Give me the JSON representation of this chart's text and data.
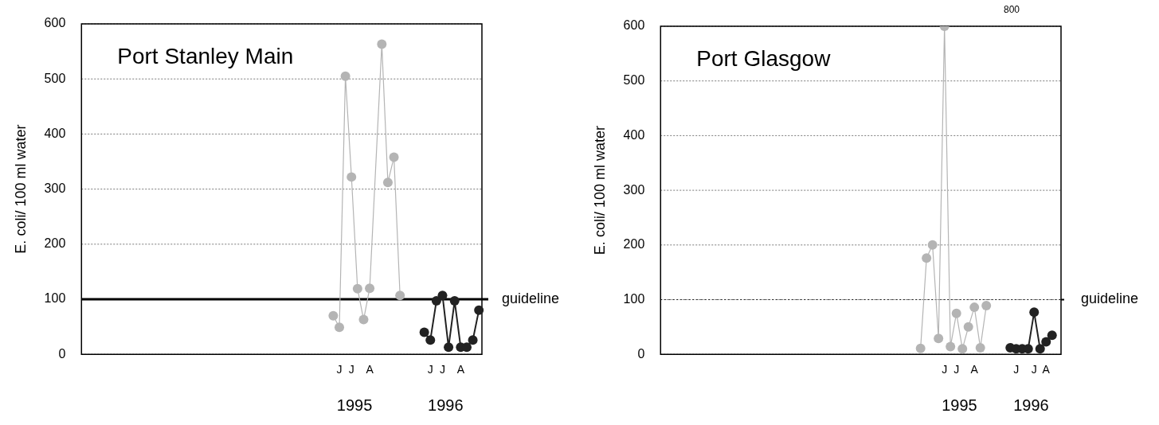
{
  "chart_data": [
    {
      "type": "line",
      "title": "Port Stanley Main",
      "ylabel": "E. coli/ 100 ml water",
      "categories": [
        null,
        null,
        null,
        null,
        null,
        null,
        null,
        null,
        null,
        null,
        null,
        null,
        null,
        null,
        null,
        null,
        null,
        null,
        null,
        null,
        null,
        null,
        null,
        null,
        null,
        null,
        null,
        null,
        null,
        null,
        null,
        null,
        null,
        null,
        null,
        null,
        null,
        null,
        null,
        null,
        null,
        null,
        "J",
        null,
        "J",
        null,
        null,
        "A",
        null,
        null,
        null,
        null,
        null,
        null,
        null,
        null,
        null,
        "J",
        null,
        "J",
        null,
        null,
        "A",
        null,
        null,
        null
      ],
      "series": [
        {
          "color": "#b4b4b4",
          "values": [
            null,
            null,
            null,
            null,
            null,
            null,
            null,
            null,
            null,
            null,
            null,
            null,
            null,
            null,
            null,
            null,
            null,
            null,
            null,
            null,
            null,
            null,
            null,
            null,
            null,
            null,
            null,
            null,
            null,
            null,
            null,
            null,
            null,
            null,
            null,
            null,
            null,
            null,
            null,
            null,
            null,
            70,
            49,
            505,
            322,
            119,
            63,
            120,
            null,
            563,
            312,
            358,
            107,
            null,
            null,
            null,
            null,
            null,
            null,
            null,
            null,
            null,
            null,
            null,
            null,
            null
          ]
        },
        {
          "color": "#222222",
          "values": [
            null,
            null,
            null,
            null,
            null,
            null,
            null,
            null,
            null,
            null,
            null,
            null,
            null,
            null,
            null,
            null,
            null,
            null,
            null,
            null,
            null,
            null,
            null,
            null,
            null,
            null,
            null,
            null,
            null,
            null,
            null,
            null,
            null,
            null,
            null,
            null,
            null,
            null,
            null,
            null,
            null,
            null,
            null,
            null,
            null,
            null,
            null,
            null,
            null,
            null,
            null,
            null,
            null,
            null,
            null,
            null,
            40,
            26,
            97,
            107,
            13,
            97,
            13,
            13,
            26,
            80
          ]
        }
      ],
      "ylim": [
        0,
        600
      ],
      "yticks": [
        0,
        100,
        200,
        300,
        400,
        500,
        600
      ],
      "grid": "y",
      "legend": false,
      "marker": "circle",
      "line_style": "solid",
      "ref_lines": [
        {
          "axis": "y",
          "value": 100,
          "label": "guideline",
          "color": "#000000",
          "line_style": "solid"
        }
      ],
      "annotations": [
        "1995",
        "1996"
      ]
    },
    {
      "type": "line",
      "title": "Port Glasgow",
      "ylabel": "E. coli/ 100 ml water",
      "categories": [
        null,
        null,
        null,
        null,
        null,
        null,
        null,
        null,
        null,
        null,
        null,
        null,
        null,
        null,
        null,
        null,
        null,
        null,
        null,
        null,
        null,
        null,
        null,
        null,
        null,
        null,
        null,
        null,
        null,
        null,
        null,
        null,
        null,
        null,
        null,
        null,
        null,
        null,
        null,
        null,
        null,
        null,
        null,
        null,
        null,
        null,
        null,
        "J",
        null,
        "J",
        null,
        null,
        "A",
        null,
        null,
        null,
        null,
        null,
        null,
        "J",
        null,
        null,
        "J",
        null,
        "A",
        null,
        null
      ],
      "series": [
        {
          "color": "#b4b4b4",
          "values": [
            null,
            null,
            null,
            null,
            null,
            null,
            null,
            null,
            null,
            null,
            null,
            null,
            null,
            null,
            null,
            null,
            null,
            null,
            null,
            null,
            null,
            null,
            null,
            null,
            null,
            null,
            null,
            null,
            null,
            null,
            null,
            null,
            null,
            null,
            null,
            null,
            null,
            null,
            null,
            null,
            null,
            null,
            null,
            11,
            176,
            200,
            29,
            600,
            14,
            75,
            10,
            50,
            86,
            12,
            89,
            null,
            null,
            null,
            null,
            null,
            null,
            null,
            null,
            null,
            null,
            null,
            null
          ]
        },
        {
          "color": "#222222",
          "values": [
            null,
            null,
            null,
            null,
            null,
            null,
            null,
            null,
            null,
            null,
            null,
            null,
            null,
            null,
            null,
            null,
            null,
            null,
            null,
            null,
            null,
            null,
            null,
            null,
            null,
            null,
            null,
            null,
            null,
            null,
            null,
            null,
            null,
            null,
            null,
            null,
            null,
            null,
            null,
            null,
            null,
            null,
            null,
            null,
            null,
            null,
            null,
            null,
            null,
            null,
            null,
            null,
            null,
            null,
            null,
            null,
            null,
            null,
            12,
            10,
            10,
            10,
            77,
            10,
            23,
            35,
            null
          ]
        }
      ],
      "ylim": [
        0,
        600
      ],
      "yticks": [
        0,
        100,
        200,
        300,
        400,
        500,
        600
      ],
      "grid": "y",
      "legend": false,
      "marker": "circle",
      "line_style": "solid",
      "ref_lines": [
        {
          "axis": "y",
          "value": 100,
          "label": "guideline",
          "color": "#000000",
          "line_style": "dotted"
        }
      ],
      "annotations": [
        "1995",
        "1996",
        "800"
      ]
    }
  ]
}
